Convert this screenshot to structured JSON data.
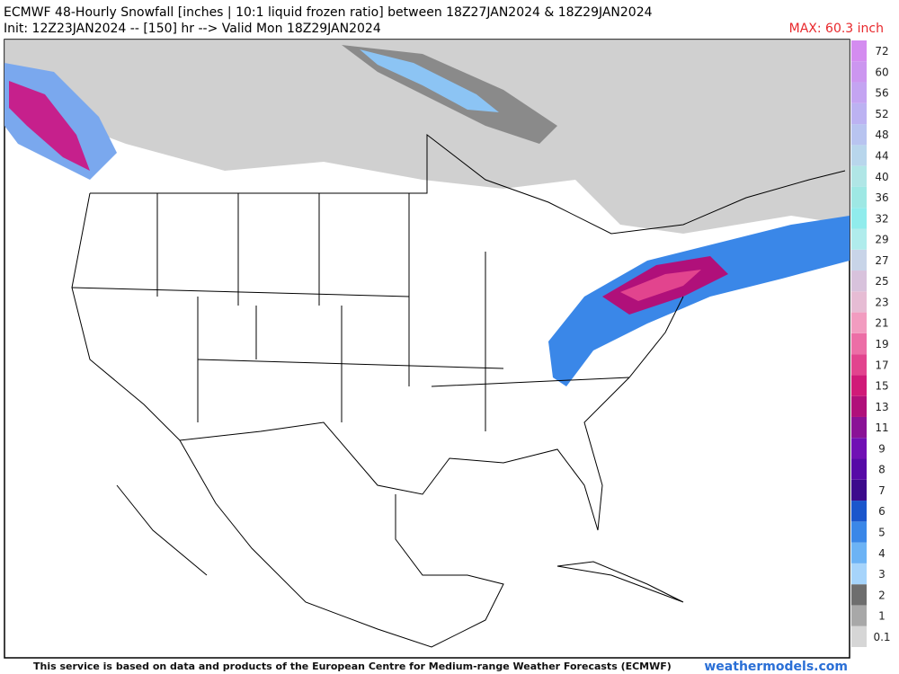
{
  "header": {
    "title": "ECMWF 48-Hourly Snowfall [inches | 10:1 liquid frozen ratio] between 18Z27JAN2024 & 18Z29JAN2024",
    "subtitle": "Init: 12Z23JAN2024 -- [150] hr --> Valid Mon 18Z29JAN2024",
    "max_label": "MAX: 60.3 inch"
  },
  "colorbar": {
    "labels": [
      "0.1",
      "1",
      "2",
      "3",
      "4",
      "5",
      "6",
      "7",
      "8",
      "9",
      "11",
      "13",
      "15",
      "17",
      "19",
      "21",
      "23",
      "25",
      "27",
      "29",
      "32",
      "36",
      "40",
      "44",
      "48",
      "52",
      "56",
      "60",
      "72"
    ],
    "colors": [
      "#d6d6d6",
      "#a8a8a8",
      "#6e6e6e",
      "#a6d4fb",
      "#6cb3f5",
      "#3a87e8",
      "#1a56cc",
      "#3c0a8c",
      "#560aa6",
      "#7010b4",
      "#8a1296",
      "#b0107a",
      "#d01a78",
      "#e2448e",
      "#ec6ea6",
      "#f29cc0",
      "#e6bcd4",
      "#d8c2dc",
      "#c8d4e8",
      "#b0ecec",
      "#90ecec",
      "#9ee8e4",
      "#b0e6e6",
      "#b8d6ec",
      "#b8c4f0",
      "#bcb2f2",
      "#c4a4f2",
      "#cc96f0",
      "#d48cf0"
    ]
  },
  "footer": {
    "credit": "This service is based on data and products of the European Centre for Medium-range Weather Forecasts (ECMWF)",
    "site": "weathermodels.com"
  }
}
